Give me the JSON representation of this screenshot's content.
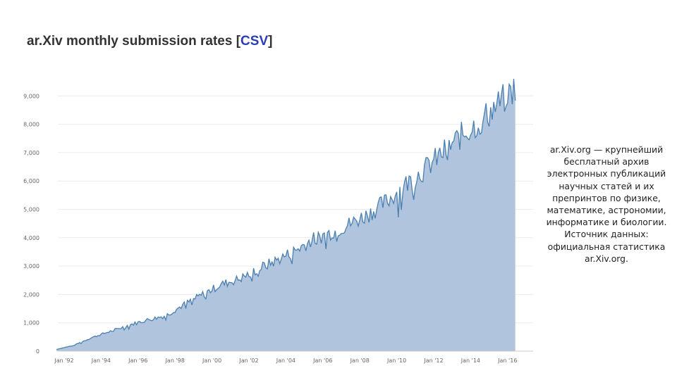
{
  "header": {
    "title_text": "ar.Xiv monthly submission rates [",
    "csv_link": "CSV",
    "close_bracket": "]"
  },
  "caption": "ar.Xiv.org — крупнейший бесплатный архив электронных публикаций научных статей и их препринтов по физике, математике, астрономии, информатике и биологии. Источник данных: официальная статистика ar.Xiv.org.",
  "colors": {
    "area_fill": "#b0c4de",
    "line": "#4a7fb0",
    "grid": "#ececec",
    "link": "#2b3db8"
  },
  "chart_data": {
    "type": "area",
    "x_start": "Aug 1991",
    "x_end": "Jun 2016",
    "x_ticks": [
      "Jan '92",
      "Jan '94",
      "Jan '96",
      "Jan '98",
      "Jan '00",
      "Jan '02",
      "Jan '04",
      "Jan '06",
      "Jan '08",
      "Jan '10",
      "Jan '12",
      "Jan '14",
      "Jan '16"
    ],
    "y_ticks": [
      "0",
      "1,000",
      "2,000",
      "3,000",
      "4,000",
      "5,000",
      "6,000",
      "7,000",
      "8,000",
      "9,000"
    ],
    "ylim": [
      0,
      9900
    ],
    "grid": true,
    "legend": "none",
    "annual_levels": {
      "years": [
        1991,
        1992,
        1993,
        1994,
        1995,
        1996,
        1997,
        1998,
        1999,
        2000,
        2001,
        2002,
        2003,
        2004,
        2005,
        2006,
        2007,
        2008,
        2009,
        2010,
        2011,
        2012,
        2013,
        2014,
        2015,
        2016
      ],
      "values": [
        50,
        200,
        480,
        700,
        920,
        1100,
        1250,
        1650,
        2000,
        2350,
        2550,
        2900,
        3200,
        3550,
        3950,
        4200,
        4500,
        4850,
        5300,
        5900,
        6400,
        7000,
        7600,
        8100,
        8700,
        9350
      ]
    }
  }
}
